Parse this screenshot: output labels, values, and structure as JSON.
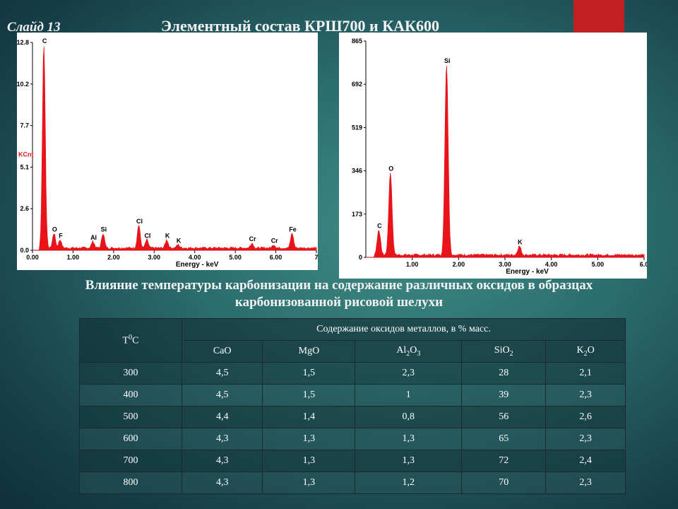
{
  "slide": {
    "number_label": "Слайд 13",
    "title": "Элементный состав КРШ700 и КАК600",
    "caption_line1": "Влияние температуры карбонизации на содержание различных оксидов в образцах",
    "caption_line2": "карбонизованной рисовой шелухи",
    "accent_color": "#c0201f"
  },
  "chart_data": [
    {
      "type": "line",
      "xlabel": "Energy - keV",
      "ylabel": "KCnt",
      "xlim": [
        0,
        7.0
      ],
      "ylim": [
        0,
        12.8
      ],
      "x_ticks": [
        "0.00",
        "1.00",
        "2.00",
        "3.00",
        "4.00",
        "5.00",
        "6.00",
        "7"
      ],
      "y_ticks": [
        "0.0",
        "2.6",
        "5.1",
        "7.7",
        "10.2",
        "12.8"
      ],
      "peaks": [
        {
          "label": "C",
          "x": 0.28,
          "y": 12.5
        },
        {
          "label": "O",
          "x": 0.53,
          "y": 0.9
        },
        {
          "label": "F",
          "x": 0.68,
          "y": 0.5
        },
        {
          "label": "Al",
          "x": 1.49,
          "y": 0.4
        },
        {
          "label": "Si",
          "x": 1.74,
          "y": 0.9
        },
        {
          "label": "Cl",
          "x": 2.62,
          "y": 1.4
        },
        {
          "label": "Cl",
          "x": 2.82,
          "y": 0.5
        },
        {
          "label": "K",
          "x": 3.31,
          "y": 0.5
        },
        {
          "label": "K",
          "x": 3.59,
          "y": 0.2
        },
        {
          "label": "Cr",
          "x": 5.41,
          "y": 0.3
        },
        {
          "label": "Cr",
          "x": 5.95,
          "y": 0.2
        },
        {
          "label": "Fe",
          "x": 6.4,
          "y": 0.9
        }
      ],
      "color": "#e8141a"
    },
    {
      "type": "line",
      "xlabel": "Energy - keV",
      "ylabel": "",
      "xlim": [
        0,
        6.0
      ],
      "ylim": [
        0,
        865
      ],
      "x_ticks": [
        "1.00",
        "2.00",
        "3.00",
        "4.00",
        "5.00",
        "6.0"
      ],
      "y_ticks": [
        "0",
        "173",
        "346",
        "519",
        "692",
        "865"
      ],
      "peaks": [
        {
          "label": "C",
          "x": 0.28,
          "y": 100
        },
        {
          "label": "O",
          "x": 0.53,
          "y": 330
        },
        {
          "label": "Si",
          "x": 1.74,
          "y": 760
        },
        {
          "label": "K",
          "x": 3.31,
          "y": 35
        }
      ],
      "color": "#e8141a"
    }
  ],
  "table": {
    "temp_header": "T",
    "temp_sup": "0",
    "temp_unit": "C",
    "group_header": "Содержание оксидов металлов, в % масс.",
    "columns": [
      {
        "main": "CaO",
        "sub": ""
      },
      {
        "main": "MgO",
        "sub": ""
      },
      {
        "main": "Al",
        "sub": "2",
        "tail": "O",
        "sub2": "3"
      },
      {
        "main": "SiO",
        "sub": "2"
      },
      {
        "main": "K",
        "sub": "2",
        "tail": "O"
      }
    ],
    "rows": [
      [
        "300",
        "4,5",
        "1,5",
        "2,3",
        "28",
        "2,1"
      ],
      [
        "400",
        "4,5",
        "1,5",
        "1",
        "39",
        "2,3"
      ],
      [
        "500",
        "4,4",
        "1,4",
        "0,8",
        "56",
        "2,6"
      ],
      [
        "600",
        "4,3",
        "1,3",
        "1,3",
        "65",
        "2,3"
      ],
      [
        "700",
        "4,3",
        "1,3",
        "1,3",
        "72",
        "2,4"
      ],
      [
        "800",
        "4,3",
        "1,3",
        "1,2",
        "70",
        "2,3"
      ]
    ]
  }
}
